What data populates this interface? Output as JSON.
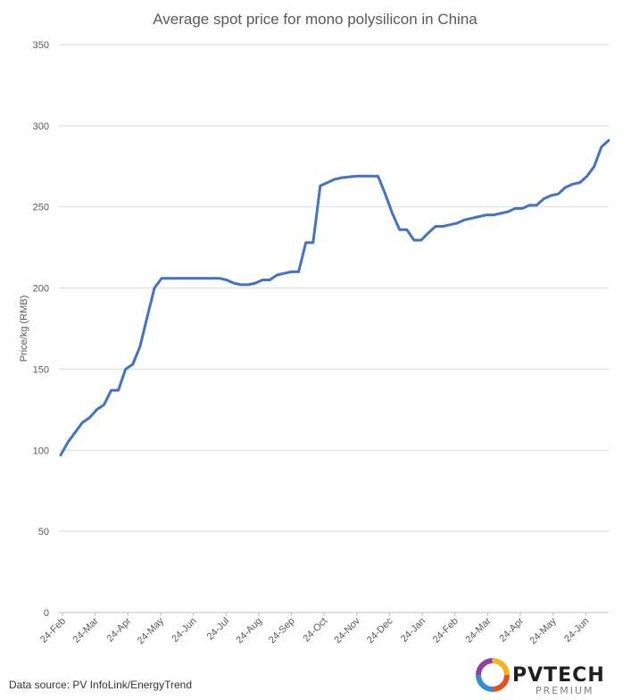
{
  "chart_data": {
    "type": "line",
    "title": "Average spot price for mono polysilicon in China",
    "ylabel": "Price/kg (RMB)",
    "xlabel": "",
    "ylim": [
      0,
      350
    ],
    "yticks": [
      0,
      50,
      100,
      150,
      200,
      250,
      300,
      350
    ],
    "grid": true,
    "legend": "none",
    "x_tick_labels": [
      "24-Feb",
      "24-Mar",
      "24-Apr",
      "24-May",
      "24-Jun",
      "24-Jul",
      "24-Aug",
      "24-Sep",
      "24-Oct",
      "24-Nov",
      "24-Dec",
      "24-Jan",
      "24-Feb",
      "24-Mar",
      "24-Apr",
      "24-May",
      "24-Jun"
    ],
    "line_color": "#4472c4",
    "series": [
      {
        "values": [
          97,
          105,
          111,
          117,
          120,
          125,
          128,
          137,
          137,
          150,
          153,
          164,
          182,
          200,
          206,
          206,
          206,
          206,
          206,
          206,
          206,
          206,
          206,
          205,
          203,
          202,
          202,
          203,
          205,
          205,
          208,
          209,
          210,
          210,
          228,
          228,
          263,
          265,
          267,
          268,
          268.5,
          269,
          269,
          269,
          269,
          258,
          246,
          236,
          236,
          229.5,
          229.5,
          234,
          238,
          238,
          239,
          240,
          242,
          243,
          244,
          245,
          245,
          246,
          247,
          249,
          249,
          251,
          251,
          255,
          257,
          258,
          262,
          264,
          265,
          269,
          275,
          287,
          291
        ]
      }
    ]
  },
  "source_text": "Data source: PV InfoLink/EnergyTrend",
  "logo": {
    "word": "PVTECH",
    "sub": "PREMIUM"
  }
}
